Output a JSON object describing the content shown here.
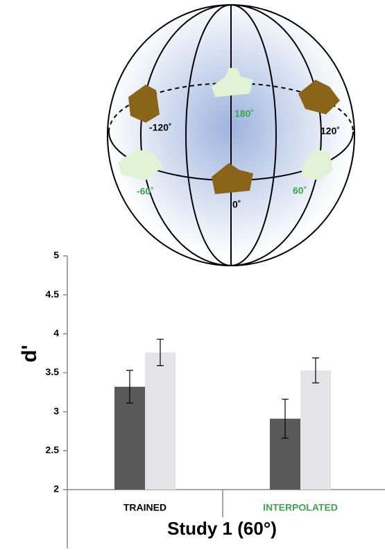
{
  "diagram": {
    "labels": [
      {
        "text": "-120˚",
        "color": "#000000"
      },
      {
        "text": "180˚",
        "color": "#3aa84a"
      },
      {
        "text": "120˚",
        "color": "#000000"
      },
      {
        "text": "-60˚",
        "color": "#3aa84a"
      },
      {
        "text": "0˚",
        "color": "#000000"
      },
      {
        "text": "60˚",
        "color": "#3aa84a"
      }
    ]
  },
  "chart_data": {
    "type": "bar",
    "xlabel": "Study 1 (60°)",
    "ylabel": "d'",
    "categories": [
      "TRAINED",
      "INTERPOLATED"
    ],
    "category_colors": [
      "#000000",
      "#3aa84a"
    ],
    "series": [
      {
        "color": "#595959",
        "values": [
          3.32,
          2.91
        ],
        "errors": [
          0.21,
          0.25
        ]
      },
      {
        "color": "#e4e4e6",
        "values": [
          3.76,
          3.53
        ],
        "errors": [
          0.17,
          0.16
        ]
      }
    ],
    "ylim": [
      2,
      5
    ],
    "yticks": [
      2,
      2.5,
      3,
      3.5,
      4,
      4.5,
      5
    ]
  }
}
